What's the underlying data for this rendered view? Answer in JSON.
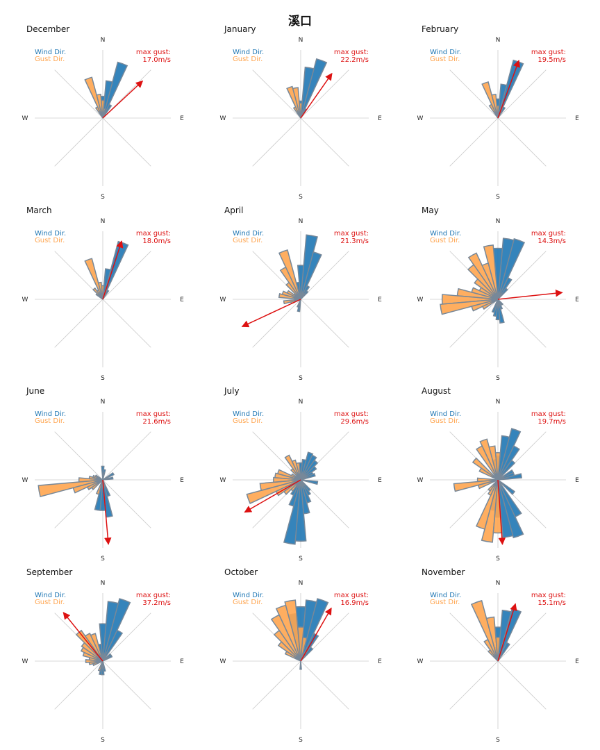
{
  "chart_data": {
    "type": "polar-bar",
    "title": "溪口",
    "compass_labels": {
      "n": "N",
      "e": "E",
      "s": "S",
      "w": "W"
    },
    "legend": {
      "wind": "Wind Dir.",
      "gust": "Gust Dir."
    },
    "colors": {
      "wind": "#1f77b4",
      "gust": "#ffa54f",
      "outline": "#778899",
      "arrow": "#dd1111",
      "axis": "#cccccc"
    },
    "sectors": 36,
    "max_gust_label": "max gust:",
    "months": [
      {
        "name": "December",
        "max_gust": "17.0m/s",
        "gust_dir": 47,
        "gust_len": 0.8,
        "wind": [
          [
            20,
            0.85
          ],
          [
            10,
            0.55
          ],
          [
            30,
            0.22
          ],
          [
            0,
            0.32
          ]
        ],
        "gust": [
          [
            340,
            0.62
          ],
          [
            350,
            0.35
          ],
          [
            0,
            0.26
          ],
          [
            330,
            0.18
          ],
          [
            10,
            0.14
          ]
        ]
      },
      {
        "name": "January",
        "max_gust": "22.2m/s",
        "gust_dir": 35,
        "gust_len": 0.8,
        "wind": [
          [
            20,
            0.9
          ],
          [
            10,
            0.75
          ],
          [
            0,
            0.25
          ],
          [
            30,
            0.15
          ]
        ],
        "gust": [
          [
            350,
            0.45
          ],
          [
            340,
            0.48
          ],
          [
            0,
            0.22
          ],
          [
            330,
            0.18
          ]
        ]
      },
      {
        "name": "February",
        "max_gust": "19.5m/s",
        "gust_dir": 20,
        "gust_len": 0.9,
        "wind": [
          [
            20,
            0.88
          ],
          [
            10,
            0.5
          ],
          [
            0,
            0.28
          ],
          [
            30,
            0.18
          ]
        ],
        "gust": [
          [
            340,
            0.55
          ],
          [
            350,
            0.35
          ],
          [
            330,
            0.22
          ],
          [
            0,
            0.18
          ]
        ]
      },
      {
        "name": "March",
        "max_gust": "18.0m/s",
        "gust_dir": 18,
        "gust_len": 0.9,
        "wind": [
          [
            20,
            0.88
          ],
          [
            10,
            0.45
          ],
          [
            0,
            0.2
          ],
          [
            30,
            0.15
          ]
        ],
        "gust": [
          [
            340,
            0.62
          ],
          [
            350,
            0.25
          ],
          [
            0,
            0.2
          ],
          [
            320,
            0.2
          ],
          [
            310,
            0.12
          ],
          [
            330,
            0.15
          ]
        ]
      },
      {
        "name": "April",
        "max_gust": "21.3m/s",
        "gust_dir": 245,
        "gust_len": 0.95,
        "wind": [
          [
            10,
            0.95
          ],
          [
            20,
            0.72
          ],
          [
            0,
            0.5
          ],
          [
            30,
            0.22
          ],
          [
            40,
            0.15
          ],
          [
            190,
            0.18
          ],
          [
            200,
            0.12
          ],
          [
            350,
            0.25
          ]
        ],
        "gust": [
          [
            340,
            0.75
          ],
          [
            330,
            0.52
          ],
          [
            320,
            0.3
          ],
          [
            300,
            0.22
          ],
          [
            290,
            0.28
          ],
          [
            280,
            0.32
          ],
          [
            260,
            0.25
          ],
          [
            250,
            0.15
          ],
          [
            310,
            0.12
          ]
        ]
      },
      {
        "name": "May",
        "max_gust": "14.3m/s",
        "gust_dir": 84,
        "gust_len": 0.95,
        "wind": [
          [
            20,
            0.92
          ],
          [
            10,
            0.9
          ],
          [
            0,
            0.75
          ],
          [
            30,
            0.35
          ],
          [
            40,
            0.2
          ],
          [
            170,
            0.35
          ],
          [
            180,
            0.3
          ],
          [
            190,
            0.25
          ],
          [
            160,
            0.15
          ],
          [
            140,
            0.1
          ],
          [
            200,
            0.2
          ]
        ],
        "gust": [
          [
            330,
            0.75
          ],
          [
            320,
            0.62
          ],
          [
            310,
            0.42
          ],
          [
            350,
            0.8
          ],
          [
            340,
            0.55
          ],
          [
            300,
            0.3
          ],
          [
            290,
            0.4
          ],
          [
            280,
            0.6
          ],
          [
            270,
            0.82
          ],
          [
            260,
            0.85
          ],
          [
            250,
            0.4
          ],
          [
            240,
            0.25
          ]
        ]
      },
      {
        "name": "June",
        "max_gust": "21.6m/s",
        "gust_dir": 175,
        "gust_len": 0.95,
        "wind": [
          [
            170,
            0.55
          ],
          [
            180,
            0.45
          ],
          [
            160,
            0.25
          ],
          [
            190,
            0.45
          ],
          [
            0,
            0.2
          ],
          [
            10,
            0.15
          ],
          [
            80,
            0.15
          ],
          [
            60,
            0.18
          ]
        ],
        "gust": [
          [
            260,
            0.95
          ],
          [
            250,
            0.45
          ],
          [
            270,
            0.35
          ],
          [
            240,
            0.25
          ],
          [
            200,
            0.22
          ],
          [
            280,
            0.2
          ],
          [
            230,
            0.2
          ],
          [
            290,
            0.15
          ],
          [
            300,
            0.12
          ]
        ]
      },
      {
        "name": "July",
        "max_gust": "29.6m/s",
        "gust_dir": 240,
        "gust_len": 0.95,
        "wind": [
          [
            190,
            0.95
          ],
          [
            180,
            0.9
          ],
          [
            170,
            0.5
          ],
          [
            160,
            0.35
          ],
          [
            150,
            0.25
          ],
          [
            140,
            0.2
          ],
          [
            30,
            0.4
          ],
          [
            20,
            0.42
          ],
          [
            40,
            0.35
          ],
          [
            50,
            0.28
          ],
          [
            60,
            0.2
          ],
          [
            70,
            0.22
          ],
          [
            0,
            0.25
          ],
          [
            10,
            0.3
          ],
          [
            100,
            0.25
          ],
          [
            200,
            0.4
          ],
          [
            210,
            0.25
          ]
        ],
        "gust": [
          [
            250,
            0.82
          ],
          [
            260,
            0.6
          ],
          [
            240,
            0.4
          ],
          [
            270,
            0.4
          ],
          [
            280,
            0.38
          ],
          [
            290,
            0.35
          ],
          [
            230,
            0.3
          ],
          [
            220,
            0.2
          ],
          [
            330,
            0.4
          ],
          [
            340,
            0.3
          ],
          [
            350,
            0.25
          ],
          [
            320,
            0.2
          ],
          [
            300,
            0.15
          ]
        ]
      },
      {
        "name": "August",
        "max_gust": "19.7m/s",
        "gust_dir": 176,
        "gust_len": 0.95,
        "wind": [
          [
            160,
            0.88
          ],
          [
            170,
            0.85
          ],
          [
            150,
            0.6
          ],
          [
            180,
            0.55
          ],
          [
            190,
            0.45
          ],
          [
            20,
            0.78
          ],
          [
            10,
            0.65
          ],
          [
            30,
            0.55
          ],
          [
            40,
            0.35
          ],
          [
            60,
            0.25
          ],
          [
            80,
            0.35
          ],
          [
            70,
            0.25
          ],
          [
            130,
            0.3
          ],
          [
            0,
            0.35
          ],
          [
            350,
            0.3
          ]
        ],
        "gust": [
          [
            190,
            0.92
          ],
          [
            180,
            0.78
          ],
          [
            200,
            0.75
          ],
          [
            340,
            0.62
          ],
          [
            330,
            0.55
          ],
          [
            350,
            0.5
          ],
          [
            0,
            0.4
          ],
          [
            310,
            0.45
          ],
          [
            300,
            0.3
          ],
          [
            270,
            0.3
          ],
          [
            260,
            0.65
          ],
          [
            250,
            0.3
          ],
          [
            210,
            0.25
          ],
          [
            220,
            0.2
          ]
        ]
      },
      {
        "name": "September",
        "max_gust": "37.2m/s",
        "gust_dir": 321,
        "gust_len": 0.92,
        "wind": [
          [
            20,
            0.95
          ],
          [
            10,
            0.88
          ],
          [
            0,
            0.55
          ],
          [
            30,
            0.5
          ],
          [
            350,
            0.25
          ],
          [
            180,
            0.2
          ],
          [
            170,
            0.15
          ],
          [
            190,
            0.2
          ],
          [
            200,
            0.12
          ],
          [
            60,
            0.15
          ],
          [
            50,
            0.15
          ]
        ],
        "gust": [
          [
            320,
            0.55
          ],
          [
            330,
            0.45
          ],
          [
            310,
            0.38
          ],
          [
            340,
            0.42
          ],
          [
            300,
            0.35
          ],
          [
            290,
            0.3
          ],
          [
            270,
            0.25
          ],
          [
            280,
            0.2
          ],
          [
            260,
            0.2
          ],
          [
            250,
            0.15
          ],
          [
            200,
            0.15
          ]
        ]
      },
      {
        "name": "October",
        "max_gust": "16.9m/s",
        "gust_dir": 30,
        "gust_len": 0.9,
        "wind": [
          [
            20,
            0.95
          ],
          [
            10,
            0.9
          ],
          [
            0,
            0.8
          ],
          [
            350,
            0.7
          ],
          [
            30,
            0.45
          ],
          [
            40,
            0.25
          ],
          [
            180,
            0.12
          ]
        ],
        "gust": [
          [
            340,
            0.85
          ],
          [
            330,
            0.75
          ],
          [
            350,
            0.9
          ],
          [
            320,
            0.55
          ],
          [
            310,
            0.4
          ],
          [
            300,
            0.25
          ],
          [
            0,
            0.5
          ],
          [
            10,
            0.35
          ]
        ]
      },
      {
        "name": "November",
        "max_gust": "15.1m/s",
        "gust_dir": 17,
        "gust_len": 0.88,
        "wind": [
          [
            20,
            0.8
          ],
          [
            10,
            0.75
          ],
          [
            0,
            0.5
          ],
          [
            30,
            0.3
          ],
          [
            350,
            0.2
          ]
        ],
        "gust": [
          [
            340,
            0.92
          ],
          [
            350,
            0.65
          ],
          [
            330,
            0.35
          ],
          [
            0,
            0.35
          ],
          [
            320,
            0.2
          ]
        ]
      }
    ]
  }
}
